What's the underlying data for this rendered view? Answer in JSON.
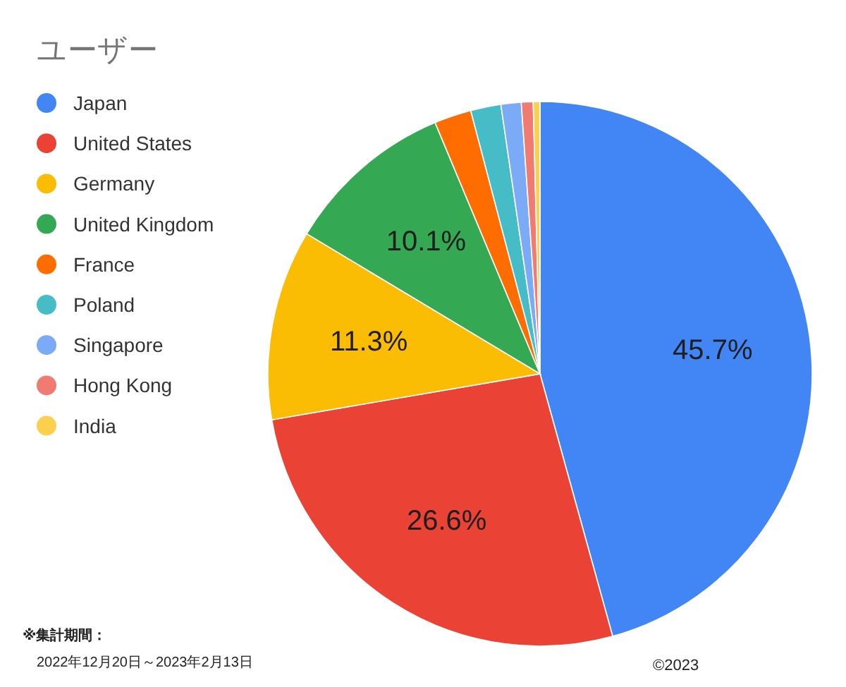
{
  "chart_data": {
    "type": "pie",
    "title": "ユーザー",
    "categories": [
      "Japan",
      "United States",
      "Germany",
      "United Kingdom",
      "France",
      "Poland",
      "Singapore",
      "Hong Kong",
      "India"
    ],
    "values": [
      45.7,
      26.6,
      11.3,
      10.1,
      2.2,
      1.8,
      1.2,
      0.7,
      0.4
    ],
    "colors": [
      "#4285f4",
      "#ea4335",
      "#fbbc04",
      "#34a853",
      "#ff6d01",
      "#46bdc6",
      "#7baaf7",
      "#f07b72",
      "#fcd04f"
    ],
    "value_labels": [
      "45.7%",
      "26.6%",
      "11.3%",
      "10.1%",
      null,
      null,
      null,
      null,
      null
    ],
    "legend": "top left",
    "annotations": [
      "※集計期間：",
      "2022年12月20日～2023年2月13日",
      "©2023"
    ]
  }
}
